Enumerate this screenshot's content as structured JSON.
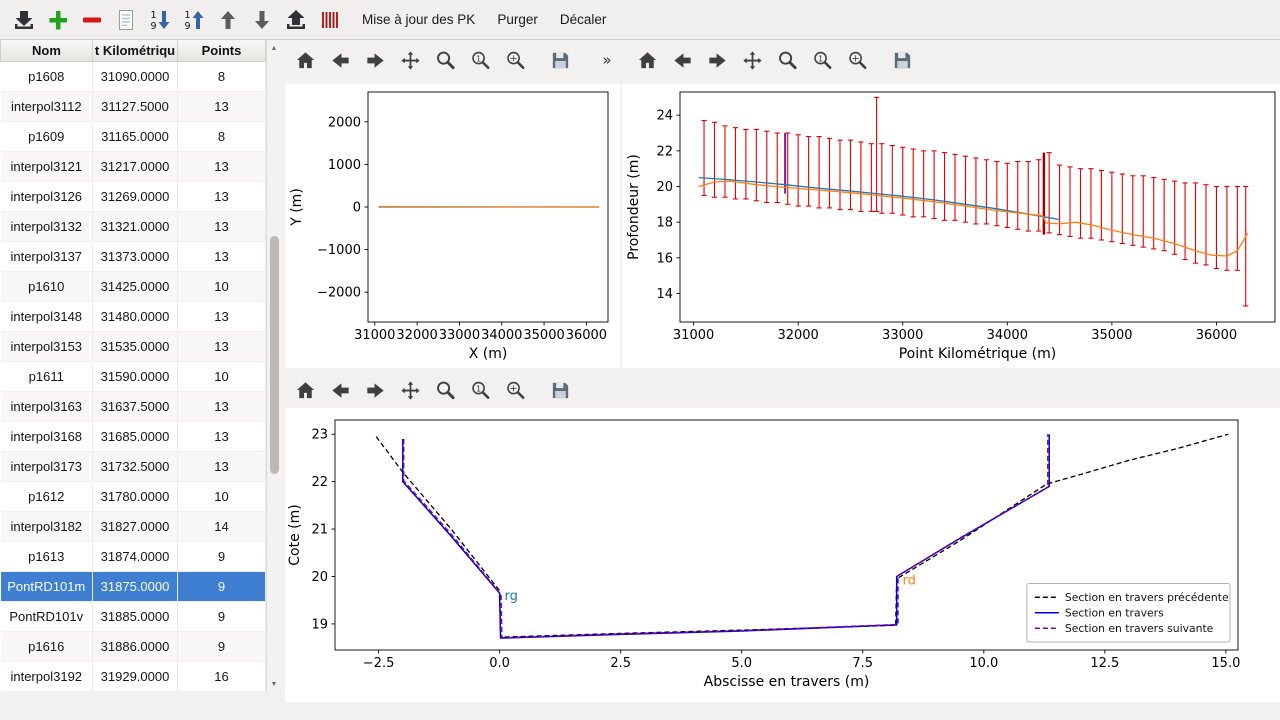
{
  "colors": {
    "selection": "#3f7fd1"
  },
  "app_toolbar": {
    "icons": [
      {
        "name": "import-sections",
        "icon": "tray-down"
      },
      {
        "name": "add-section",
        "icon": "plus-green"
      },
      {
        "name": "delete-section",
        "icon": "minus-red"
      },
      {
        "name": "edit-section",
        "icon": "page"
      },
      {
        "name": "sort-descending",
        "icon": "sort-desc"
      },
      {
        "name": "sort-ascending",
        "icon": "sort-asc"
      },
      {
        "name": "move-up",
        "icon": "arrow-up"
      },
      {
        "name": "move-down",
        "icon": "arrow-down"
      },
      {
        "name": "export-sections",
        "icon": "tray-up"
      },
      {
        "name": "update-pk-sections",
        "icon": "stripes"
      }
    ],
    "buttons": [
      {
        "label": "Mise à jour des PK"
      },
      {
        "label": "Purger"
      },
      {
        "label": "Décaler"
      }
    ]
  },
  "sections_table": {
    "headers": [
      "Nom",
      "t Kilométriqu",
      "Points"
    ],
    "selected_index": 17,
    "rows": [
      [
        "p1608",
        "31090.0000",
        "8"
      ],
      [
        "interpol3112",
        "31127.5000",
        "13"
      ],
      [
        "p1609",
        "31165.0000",
        "8"
      ],
      [
        "interpol3121",
        "31217.0000",
        "13"
      ],
      [
        "interpol3126",
        "31269.0000",
        "13"
      ],
      [
        "interpol3132",
        "31321.0000",
        "13"
      ],
      [
        "interpol3137",
        "31373.0000",
        "13"
      ],
      [
        "p1610",
        "31425.0000",
        "10"
      ],
      [
        "interpol3148",
        "31480.0000",
        "13"
      ],
      [
        "interpol3153",
        "31535.0000",
        "13"
      ],
      [
        "p1611",
        "31590.0000",
        "10"
      ],
      [
        "interpol3163",
        "31637.5000",
        "13"
      ],
      [
        "interpol3168",
        "31685.0000",
        "13"
      ],
      [
        "interpol3173",
        "31732.5000",
        "13"
      ],
      [
        "p1612",
        "31780.0000",
        "10"
      ],
      [
        "interpol3182",
        "31827.0000",
        "14"
      ],
      [
        "p1613",
        "31874.0000",
        "9"
      ],
      [
        "PontRD101m",
        "31875.0000",
        "9"
      ],
      [
        "PontRD101v",
        "31885.0000",
        "9"
      ],
      [
        "p1616",
        "31886.0000",
        "9"
      ],
      [
        "interpol3192",
        "31929.0000",
        "16"
      ]
    ]
  },
  "nav_toolbars": {
    "icons": [
      "home",
      "back",
      "forward",
      "pan",
      "zoom",
      "zoom-one",
      "zoom-rect",
      "save"
    ],
    "overflow": "»"
  },
  "chart_data": [
    {
      "id": "plan",
      "type": "line",
      "title": "",
      "xlabel": "X (m)",
      "ylabel": "Y (m)",
      "xlim": [
        30840,
        36510
      ],
      "ylim": [
        -2700,
        2700
      ],
      "xticks": [
        31000,
        32000,
        33000,
        34000,
        35000,
        36000
      ],
      "xtick_labels": [
        "31000",
        "32000",
        "33000",
        "34000",
        "35000",
        "36000"
      ],
      "yticks": [
        -2000,
        -1000,
        0,
        1000,
        2000
      ],
      "ytick_labels": [
        "−2000",
        "−1000",
        "0",
        "1000",
        "2000"
      ],
      "series": [
        {
          "name": "axe-bleu",
          "color": "#1f77b4",
          "width": 1.2,
          "dash": null,
          "points": [
            [
              31090,
              0
            ],
            [
              36300,
              0
            ]
          ]
        },
        {
          "name": "axe-orange",
          "color": "#ff7f0e",
          "width": 1.2,
          "dash": null,
          "points": [
            [
              31090,
              12
            ],
            [
              33500,
              4
            ],
            [
              36300,
              0
            ]
          ]
        }
      ]
    },
    {
      "id": "profil",
      "type": "line",
      "title": "",
      "xlabel": "Point Kilométrique (m)",
      "ylabel": "Profondeur (m)",
      "xlim": [
        30870,
        36560
      ],
      "ylim": [
        12.4,
        25.3
      ],
      "xticks": [
        31000,
        32000,
        33000,
        34000,
        35000,
        36000
      ],
      "xtick_labels": [
        "31000",
        "32000",
        "33000",
        "34000",
        "35000",
        "36000"
      ],
      "yticks": [
        14,
        16,
        18,
        20,
        22,
        24
      ],
      "ytick_labels": [
        "14",
        "16",
        "18",
        "20",
        "22",
        "24"
      ],
      "bars": {
        "color": "#e60000",
        "data": [
          [
            31100,
            19.5,
            23.7
          ],
          [
            31200,
            19.4,
            23.6
          ],
          [
            31300,
            19.4,
            23.4
          ],
          [
            31400,
            19.3,
            23.3
          ],
          [
            31500,
            19.3,
            23.2
          ],
          [
            31600,
            19.2,
            23.2
          ],
          [
            31700,
            19.1,
            23.1
          ],
          [
            31800,
            19.1,
            23.0
          ],
          [
            31900,
            19.0,
            23.0
          ],
          [
            32000,
            18.9,
            22.9
          ],
          [
            32100,
            18.9,
            22.8
          ],
          [
            32200,
            18.8,
            22.8
          ],
          [
            32300,
            18.8,
            22.7
          ],
          [
            32400,
            18.7,
            22.6
          ],
          [
            32500,
            18.7,
            22.6
          ],
          [
            32600,
            18.6,
            22.5
          ],
          [
            32700,
            18.6,
            22.4
          ],
          [
            32750,
            18.6,
            25.0
          ],
          [
            32800,
            18.5,
            22.4
          ],
          [
            32900,
            18.5,
            22.3
          ],
          [
            33000,
            18.4,
            22.2
          ],
          [
            33100,
            18.3,
            22.1
          ],
          [
            33200,
            18.3,
            22.0
          ],
          [
            33300,
            18.2,
            22.0
          ],
          [
            33400,
            18.1,
            21.9
          ],
          [
            33500,
            18.1,
            21.8
          ],
          [
            33600,
            18.0,
            21.7
          ],
          [
            33700,
            17.9,
            21.6
          ],
          [
            33800,
            17.9,
            21.5
          ],
          [
            33900,
            17.8,
            21.4
          ],
          [
            34000,
            17.7,
            21.3
          ],
          [
            34100,
            17.6,
            21.4
          ],
          [
            34200,
            17.5,
            21.4
          ],
          [
            34300,
            17.5,
            21.5
          ],
          [
            34400,
            17.4,
            21.9
          ],
          [
            34500,
            17.3,
            21.2
          ],
          [
            34600,
            17.2,
            21.1
          ],
          [
            34700,
            17.1,
            21.0
          ],
          [
            34800,
            17.1,
            21.0
          ],
          [
            34900,
            17.0,
            20.9
          ],
          [
            35000,
            16.9,
            20.8
          ],
          [
            35100,
            16.8,
            20.7
          ],
          [
            35200,
            16.7,
            20.6
          ],
          [
            35300,
            16.6,
            20.6
          ],
          [
            35400,
            16.5,
            20.5
          ],
          [
            35500,
            16.4,
            20.4
          ],
          [
            35600,
            16.2,
            20.3
          ],
          [
            35700,
            15.9,
            20.2
          ],
          [
            35800,
            15.7,
            20.2
          ],
          [
            35900,
            15.6,
            20.1
          ],
          [
            36000,
            15.4,
            20.0
          ],
          [
            36100,
            15.3,
            20.0
          ],
          [
            36200,
            15.3,
            20.0
          ],
          [
            36280,
            13.3,
            20.0
          ]
        ]
      },
      "markers": [
        {
          "name": "section-courante-pk31875",
          "x": 31875,
          "y0": 19.6,
          "y1": 23.0,
          "color": "#7b1fa2",
          "width": 2
        },
        {
          "name": "ouvrage-pk34350",
          "x": 34350,
          "y0": 17.3,
          "y1": 21.9,
          "color": "#990000",
          "width": 2.5
        }
      ],
      "series": [
        {
          "name": "ligne-bleue",
          "color": "#1f77b4",
          "width": 1.3,
          "dash": null,
          "points": [
            [
              31050,
              20.5
            ],
            [
              31300,
              20.4
            ],
            [
              31600,
              20.25
            ],
            [
              31875,
              20.1
            ],
            [
              32200,
              19.9
            ],
            [
              32500,
              19.75
            ],
            [
              32750,
              19.6
            ],
            [
              33000,
              19.45
            ],
            [
              33300,
              19.25
            ],
            [
              33600,
              19.0
            ],
            [
              33900,
              18.75
            ],
            [
              34100,
              18.55
            ],
            [
              34350,
              18.3
            ],
            [
              34500,
              18.15
            ]
          ]
        },
        {
          "name": "ligne-orange",
          "color": "#ff7f0e",
          "width": 1.3,
          "dash": null,
          "points": [
            [
              31050,
              20.0
            ],
            [
              31200,
              20.25
            ],
            [
              31350,
              20.3
            ],
            [
              31600,
              20.1
            ],
            [
              31875,
              19.95
            ],
            [
              32200,
              19.8
            ],
            [
              32500,
              19.65
            ],
            [
              32750,
              19.5
            ],
            [
              33000,
              19.35
            ],
            [
              33300,
              19.15
            ],
            [
              33600,
              18.9
            ],
            [
              33900,
              18.65
            ],
            [
              34200,
              18.45
            ],
            [
              34340,
              18.35
            ],
            [
              34370,
              17.95
            ],
            [
              34500,
              17.9
            ],
            [
              34650,
              18.0
            ],
            [
              34800,
              17.85
            ],
            [
              35000,
              17.55
            ],
            [
              35200,
              17.3
            ],
            [
              35400,
              17.1
            ],
            [
              35600,
              16.8
            ],
            [
              35800,
              16.4
            ],
            [
              35950,
              16.15
            ],
            [
              36100,
              16.1
            ],
            [
              36200,
              16.4
            ],
            [
              36300,
              17.4
            ]
          ]
        }
      ]
    },
    {
      "id": "travers",
      "type": "line",
      "title": "",
      "xlabel": "Abscisse en travers (m)",
      "ylabel": "Cote (m)",
      "xlim": [
        -3.4,
        15.25
      ],
      "ylim": [
        18.45,
        23.3
      ],
      "xticks": [
        -2.5,
        0,
        2.5,
        5,
        7.5,
        10,
        12.5,
        15
      ],
      "xtick_labels": [
        "−2.5",
        "0.0",
        "2.5",
        "5.0",
        "7.5",
        "10.0",
        "12.5",
        "15.0"
      ],
      "yticks": [
        19,
        20,
        21,
        22,
        23
      ],
      "ytick_labels": [
        "19",
        "20",
        "21",
        "22",
        "23"
      ],
      "series": [
        {
          "name": "section-precedente",
          "color": "#000000",
          "width": 1.3,
          "dash": "5,3",
          "points": [
            [
              -2.55,
              22.95
            ],
            [
              -2.0,
              22.2
            ],
            [
              -1.0,
              21.0
            ],
            [
              0.0,
              19.7
            ],
            [
              0.02,
              18.72
            ],
            [
              2.5,
              18.8
            ],
            [
              5.0,
              18.87
            ],
            [
              8.18,
              18.97
            ],
            [
              8.2,
              19.95
            ],
            [
              9.5,
              20.75
            ],
            [
              11.3,
              21.95
            ],
            [
              12.0,
              22.15
            ],
            [
              13.0,
              22.45
            ],
            [
              14.0,
              22.7
            ],
            [
              15.05,
              23.0
            ]
          ]
        },
        {
          "name": "section-courante",
          "color": "#0000dd",
          "width": 1.5,
          "dash": null,
          "points": [
            [
              -2.0,
              22.9
            ],
            [
              -2.0,
              22.0
            ],
            [
              -1.0,
              20.85
            ],
            [
              0.0,
              19.65
            ],
            [
              0.02,
              18.7
            ],
            [
              2.5,
              18.78
            ],
            [
              5.0,
              18.85
            ],
            [
              8.2,
              18.98
            ],
            [
              8.2,
              20.0
            ],
            [
              9.5,
              20.8
            ],
            [
              11.35,
              21.9
            ],
            [
              11.35,
              23.0
            ]
          ]
        },
        {
          "name": "section-suivante",
          "color": "#8b008b",
          "width": 1.3,
          "dash": "5,3",
          "points": [
            [
              -1.98,
              22.9
            ],
            [
              -1.98,
              22.02
            ],
            [
              -0.98,
              20.87
            ],
            [
              0.03,
              19.62
            ],
            [
              0.05,
              18.71
            ],
            [
              2.5,
              18.79
            ],
            [
              5.0,
              18.86
            ],
            [
              8.23,
              18.99
            ],
            [
              8.23,
              20.02
            ],
            [
              9.52,
              20.82
            ],
            [
              11.32,
              21.88
            ],
            [
              11.32,
              23.0
            ]
          ]
        }
      ],
      "annotations": [
        {
          "text": "rg",
          "x": 0.1,
          "y": 19.5,
          "color": "#1f77b4"
        },
        {
          "text": "rd",
          "x": 8.32,
          "y": 19.83,
          "color": "#ff7f0e"
        }
      ],
      "legend": {
        "position": "lower right",
        "entries": [
          {
            "label": "Section en travers précédente",
            "color": "#000000",
            "dash": true
          },
          {
            "label": "Section en travers",
            "color": "#0000dd",
            "dash": false
          },
          {
            "label": "Section en travers suivante",
            "color": "#8b008b",
            "dash": true
          }
        ]
      }
    }
  ]
}
